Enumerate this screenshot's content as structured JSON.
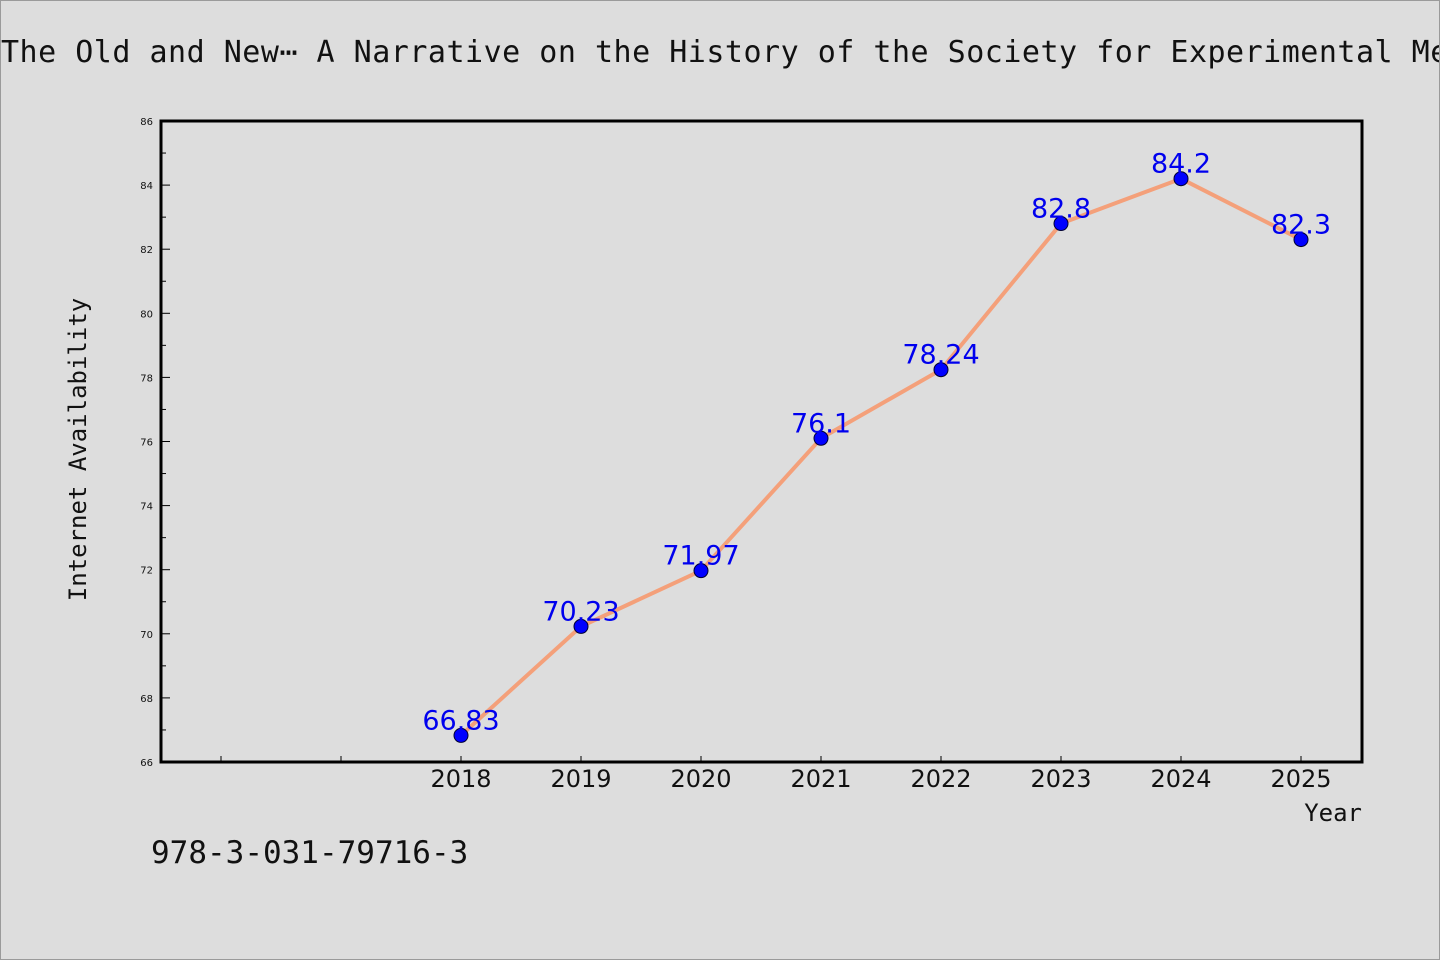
{
  "chart_data": {
    "type": "line",
    "title": "The Old and New⋯ A Narrative on the History of the Society for Experimental Mechanics",
    "xlabel": "Year",
    "ylabel": "Internet Availability",
    "categories": [
      "2018",
      "2019",
      "2020",
      "2021",
      "2022",
      "2023",
      "2024",
      "2025"
    ],
    "values": [
      66.83,
      70.23,
      71.97,
      76.1,
      78.24,
      82.8,
      84.2,
      82.3
    ],
    "data_labels": [
      "66.83",
      "70.23",
      "71.97",
      "76.1",
      "78.24",
      "82.8",
      "84.2",
      "82.3"
    ],
    "ylim": [
      66,
      86
    ],
    "y_ticks": [
      "66",
      "68",
      "70",
      "72",
      "74",
      "76",
      "78",
      "80",
      "82",
      "84",
      "86"
    ],
    "grid": false,
    "legend": "none",
    "line_color": "#f4a07a",
    "marker_color": "#0000ff",
    "label_color": "#0000ee",
    "background": "#dddddd"
  },
  "footer": {
    "isbn": "978-3-031-79716-3"
  }
}
